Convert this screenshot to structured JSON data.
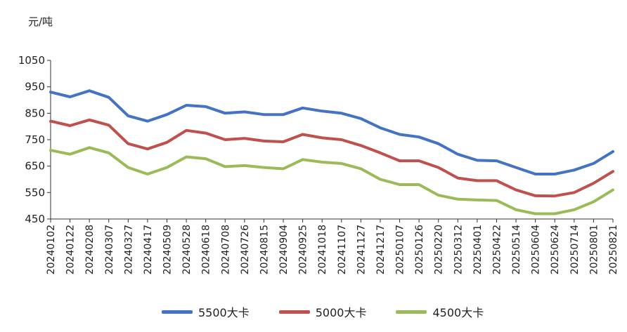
{
  "chart_data": {
    "type": "line",
    "ylabel": "元/吨",
    "ylim": [
      450,
      1050
    ],
    "yticks": [
      "1050",
      "950",
      "850",
      "750",
      "650",
      "550",
      "450"
    ],
    "grid": false,
    "legend_position": "bottom",
    "x": [
      "20240102",
      "20240122",
      "20240208",
      "20240307",
      "20240327",
      "20240417",
      "20240509",
      "20240528",
      "20240618",
      "20240708",
      "20240726",
      "20240815",
      "20240904",
      "20240925",
      "20241018",
      "20241107",
      "20241127",
      "20241217",
      "20250107",
      "20250126",
      "20250220",
      "20250312",
      "20250401",
      "20250422",
      "20250514",
      "20250604",
      "20250624",
      "20250714",
      "20250801",
      "20250821"
    ],
    "series": [
      {
        "name": "5500大卡",
        "color": "#4472C4",
        "values": [
          930,
          912,
          935,
          910,
          840,
          820,
          845,
          880,
          875,
          850,
          855,
          845,
          845,
          870,
          858,
          850,
          830,
          795,
          770,
          760,
          735,
          695,
          672,
          670,
          645,
          620,
          620,
          635,
          660,
          705
        ]
      },
      {
        "name": "5000大卡",
        "color": "#C0504D",
        "values": [
          820,
          803,
          825,
          805,
          735,
          715,
          740,
          785,
          775,
          750,
          755,
          745,
          742,
          770,
          757,
          750,
          728,
          700,
          670,
          670,
          645,
          605,
          595,
          595,
          560,
          538,
          537,
          550,
          585,
          630
        ]
      },
      {
        "name": "4500大卡",
        "color": "#9BBB59",
        "values": [
          710,
          695,
          720,
          700,
          645,
          620,
          645,
          685,
          678,
          648,
          652,
          645,
          640,
          675,
          665,
          660,
          640,
          600,
          580,
          580,
          540,
          525,
          522,
          520,
          485,
          470,
          470,
          485,
          515,
          560
        ]
      }
    ]
  }
}
